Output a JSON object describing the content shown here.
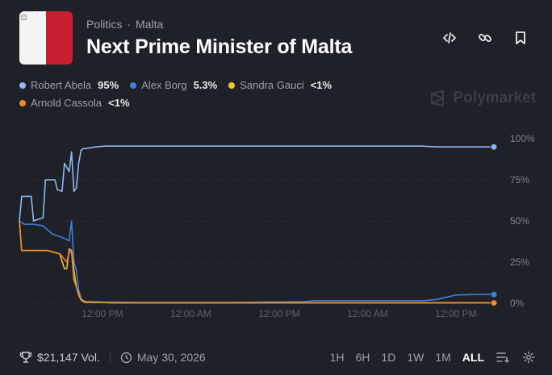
{
  "header": {
    "breadcrumb": [
      "Politics",
      "·",
      "Malta"
    ],
    "title": "Next Prime Minister of Malta",
    "actions": [
      {
        "name": "embed-code-icon"
      },
      {
        "name": "link-icon"
      },
      {
        "name": "bookmark-icon"
      }
    ]
  },
  "legend": [
    {
      "name": "Robert Abela",
      "value": "95%",
      "color": "#8fb8f2"
    },
    {
      "name": "Alex Borg",
      "value": "5.3%",
      "color": "#3d7fe0"
    },
    {
      "name": "Sandra Gauci",
      "value": "<1%",
      "color": "#f2c230"
    },
    {
      "name": "Arnold Cassola",
      "value": "<1%",
      "color": "#f08a26"
    }
  ],
  "watermark": "Polymarket",
  "footer": {
    "volume": "$21,147 Vol.",
    "date": "May 30, 2026",
    "ranges": [
      "1H",
      "6H",
      "1D",
      "1W",
      "1M",
      "ALL"
    ],
    "active_range": "ALL"
  },
  "chart_data": {
    "type": "line",
    "x_tick_labels": [
      "12:00 PM",
      "12:00 AM",
      "12:00 PM",
      "12:00 AM",
      "12:00 PM"
    ],
    "y_ticks": [
      100,
      75,
      50,
      25,
      0
    ],
    "y_tick_labels": [
      "100%",
      "75%",
      "50%",
      "25%",
      "0%"
    ],
    "ylim": [
      0,
      100
    ],
    "x_index_range": [
      0,
      100
    ],
    "grid": "dotted horizontal",
    "series": [
      {
        "name": "Robert Abela",
        "color": "#8fb8f2",
        "x": [
          0,
          0.5,
          2.5,
          3,
          5,
          5.5,
          7.5,
          8,
          9,
          9.5,
          10.5,
          11,
          11.5,
          12,
          12.5,
          13,
          13.5,
          14,
          15,
          16,
          18,
          22,
          30,
          40,
          60,
          75,
          85,
          88,
          92,
          96,
          100
        ],
        "y": [
          50,
          65,
          65,
          50,
          52,
          75,
          75,
          69,
          68,
          85,
          80,
          92,
          68,
          70,
          85,
          93,
          94,
          94,
          94.5,
          95,
          95.5,
          95.5,
          95.5,
          95.5,
          95.5,
          95.5,
          95.5,
          95,
          95,
          95,
          95
        ]
      },
      {
        "name": "Alex Borg",
        "color": "#3d7fe0",
        "x": [
          0,
          1,
          3,
          5,
          7,
          9,
          10.5,
          11,
          11.5,
          12,
          12.5,
          13,
          13.5,
          14,
          15,
          18,
          25,
          35,
          45,
          60,
          62,
          75,
          85,
          88,
          92,
          96,
          100
        ],
        "y": [
          50,
          48,
          48,
          47,
          42,
          40,
          38,
          50,
          25,
          20,
          8,
          3,
          1.5,
          1,
          1,
          0.7,
          0.5,
          0.5,
          0.5,
          1,
          1.5,
          1.5,
          1.5,
          2.3,
          5,
          5.3,
          5.3
        ]
      },
      {
        "name": "Sandra Gauci",
        "color": "#f2c230",
        "x": [
          0,
          0.5,
          6,
          8.5,
          9.5,
          10,
          10.5,
          11,
          11.5,
          12,
          12.5,
          13,
          13.5,
          14,
          20,
          40,
          60,
          80,
          100
        ],
        "y": [
          50,
          32,
          32,
          30,
          21,
          21,
          33,
          32,
          20,
          10,
          5,
          2,
          1,
          0.5,
          0.3,
          0.3,
          0.3,
          0.3,
          0.3
        ]
      },
      {
        "name": "Arnold Cassola",
        "color": "#f08a26",
        "x": [
          0,
          0.5,
          6,
          8.5,
          10,
          10.5,
          11,
          11.5,
          12,
          12.5,
          13,
          14,
          20,
          40,
          60,
          80,
          100
        ],
        "y": [
          50,
          32,
          32,
          30,
          25,
          31,
          31,
          14,
          10,
          6,
          2,
          0.8,
          0.2,
          0.2,
          0.2,
          0.2,
          0.2
        ]
      }
    ]
  }
}
